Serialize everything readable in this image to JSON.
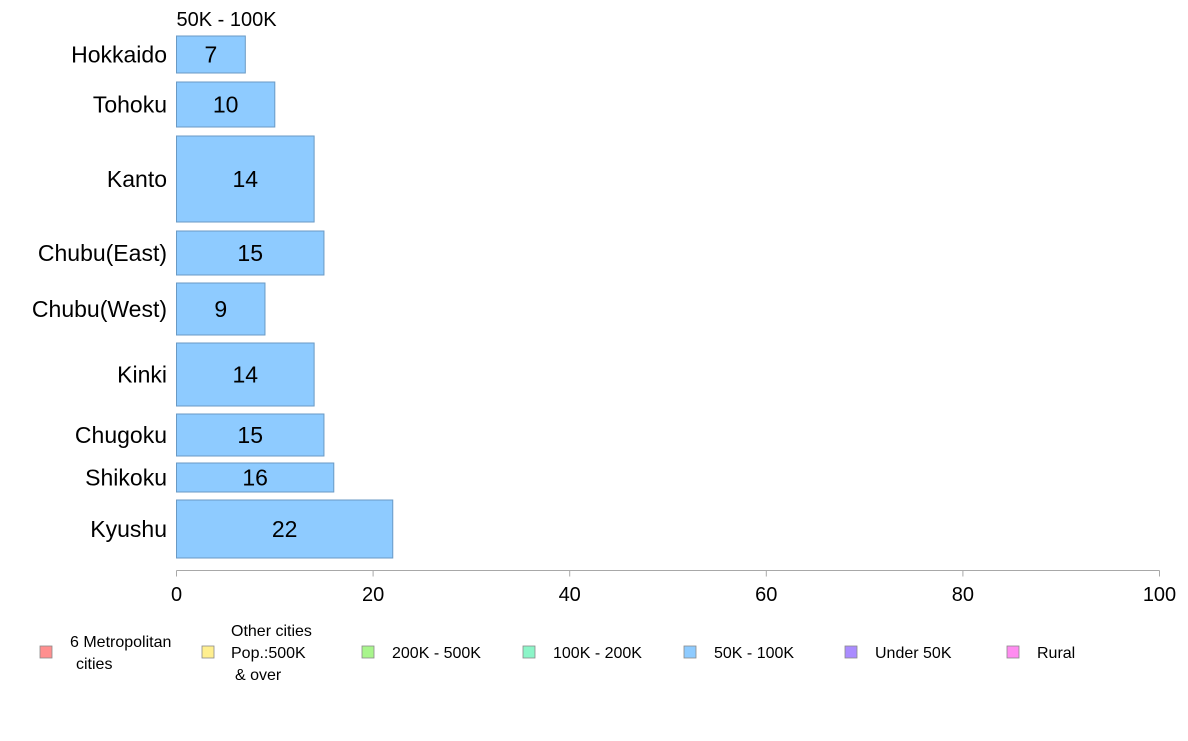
{
  "chart_data": {
    "type": "bar",
    "orientation": "horizontal",
    "title": "50K - 100K",
    "categories": [
      "Hokkaido",
      "Tohoku",
      "Kanto",
      "Chubu(East)",
      "Chubu(West)",
      "Kinki",
      "Chugoku",
      "Shikoku",
      "Kyushu"
    ],
    "series": [
      {
        "name": "50K - 100K",
        "values": [
          7,
          10,
          14,
          15,
          9,
          14,
          15,
          16,
          22
        ],
        "color": "#8ecbff"
      }
    ],
    "value_labels": [
      "7",
      "10",
      "14",
      "15",
      "9",
      "14",
      "15",
      "16",
      "22"
    ],
    "xlim": [
      0,
      100
    ],
    "x_ticks": [
      0,
      20,
      40,
      60,
      80,
      100
    ],
    "grid": false,
    "legend": {
      "placement": "bottom",
      "items": [
        {
          "lines": [
            "6 Metropolitan",
            "cities"
          ],
          "color": "#ff8f8f"
        },
        {
          "lines": [
            "Other cities",
            "Pop.:500K",
            "& over"
          ],
          "color": "#ffef8f"
        },
        {
          "lines": [
            "200K - 500K"
          ],
          "color": "#a8f58c"
        },
        {
          "lines": [
            "100K - 200K"
          ],
          "color": "#8cf5c8"
        },
        {
          "lines": [
            "50K - 100K"
          ],
          "color": "#8ecbff"
        },
        {
          "lines": [
            "Under 50K"
          ],
          "color": "#aa8cff"
        },
        {
          "lines": [
            "Rural"
          ],
          "color": "#ff8cf0"
        }
      ]
    }
  }
}
